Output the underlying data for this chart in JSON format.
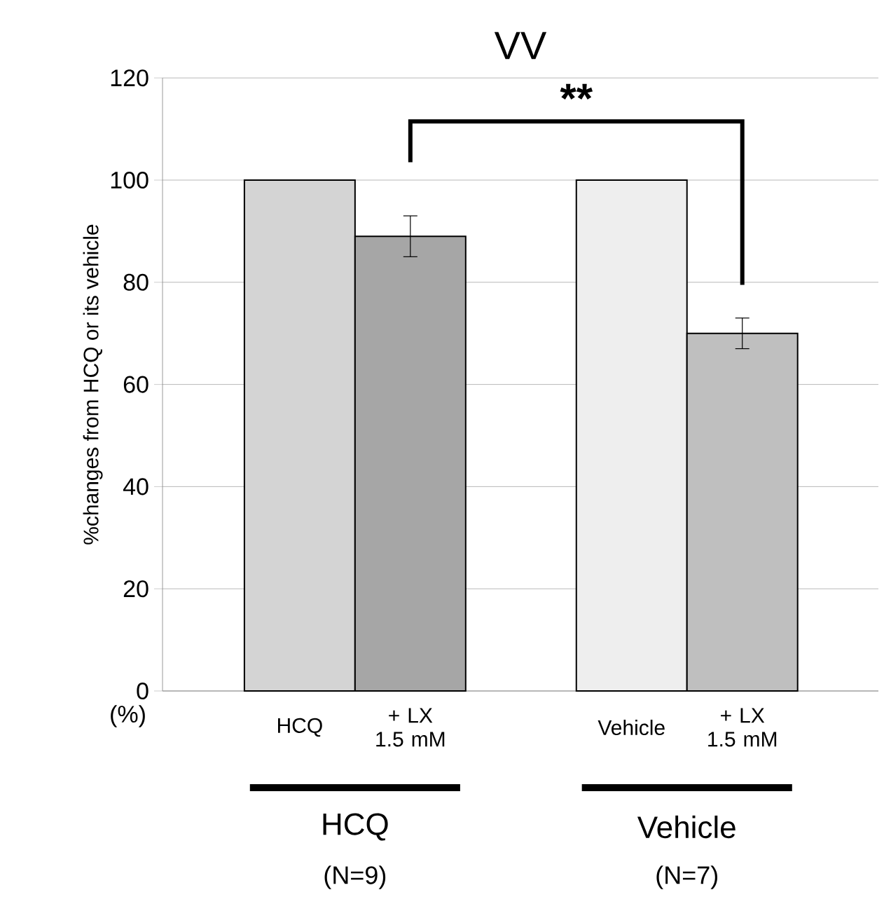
{
  "chart_data": {
    "type": "bar",
    "title": "VV",
    "ylabel": "%changes from HCQ or its vehicle",
    "categories": [
      "HCQ",
      "+ LX 1.5 mM",
      "Vehicle",
      "+ LX 1.5 mM"
    ],
    "values": [
      100,
      89,
      100,
      70
    ],
    "errors": [
      null,
      4,
      null,
      3
    ],
    "colors": [
      "#d4d4d4",
      "#a6a6a6",
      "#eeeeee",
      "#bfbfbf"
    ],
    "ylim": [
      0,
      120
    ],
    "yticks": [
      0,
      20,
      40,
      60,
      80,
      100,
      120
    ],
    "grid": "y",
    "annotations": [
      "**",
      "(%)",
      "HCQ",
      "(N=9)",
      "Vehicle",
      "(N=7)"
    ]
  }
}
